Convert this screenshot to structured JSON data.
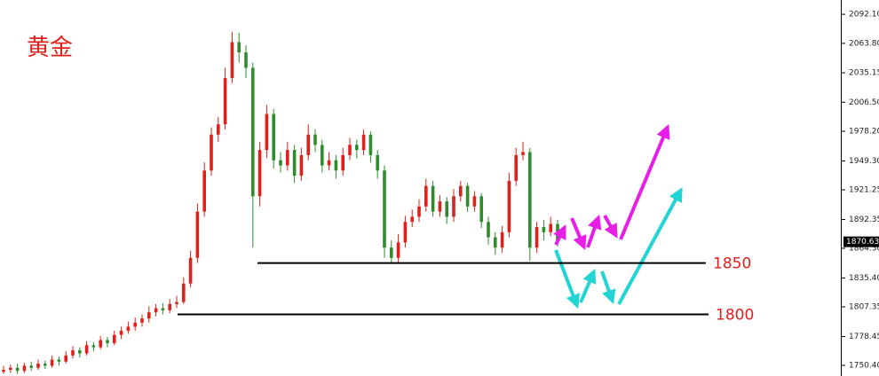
{
  "chart_data": {
    "type": "candlestick",
    "title": "黄金",
    "up_color": "#e0201a",
    "down_color": "#2e8b2e",
    "ylim": [
      1740,
      2106
    ],
    "yticks": [
      {
        "value": 2092.1,
        "label": "2092.10"
      },
      {
        "value": 2063.8,
        "label": "2063.80"
      },
      2035.15,
      {
        "value": 2006.5,
        "label": "2006.50"
      },
      {
        "value": 1978.2,
        "label": "1978.20"
      },
      {
        "value": 1949.3,
        "label": "1949.30"
      },
      1921.25,
      1892.35,
      {
        "value": 1864.3,
        "label": "1864.30"
      },
      {
        "value": 1835.4,
        "label": "1835.40"
      },
      1807.35,
      1778.45,
      {
        "value": 1750.4,
        "label": "1750.40"
      }
    ],
    "levels": [
      1850,
      1800
    ],
    "ohlc": [
      [
        1744,
        1750,
        1742,
        1746
      ],
      [
        1746,
        1751,
        1743,
        1748
      ],
      [
        1748,
        1752,
        1742,
        1745
      ],
      [
        1745,
        1753,
        1743,
        1750
      ],
      [
        1750,
        1754,
        1745,
        1748
      ],
      [
        1748,
        1756,
        1746,
        1752
      ],
      [
        1752,
        1755,
        1747,
        1750
      ],
      [
        1750,
        1760,
        1748,
        1756
      ],
      [
        1756,
        1759,
        1750,
        1754
      ],
      [
        1754,
        1764,
        1752,
        1760
      ],
      [
        1760,
        1769,
        1757,
        1765
      ],
      [
        1765,
        1768,
        1758,
        1762
      ],
      [
        1762,
        1774,
        1760,
        1770
      ],
      [
        1770,
        1773,
        1764,
        1768
      ],
      [
        1768,
        1779,
        1766,
        1775
      ],
      [
        1775,
        1778,
        1768,
        1772
      ],
      [
        1772,
        1784,
        1770,
        1780
      ],
      [
        1780,
        1788,
        1776,
        1784
      ],
      [
        1784,
        1793,
        1781,
        1788
      ],
      [
        1788,
        1797,
        1784,
        1792
      ],
      [
        1792,
        1800,
        1788,
        1796
      ],
      [
        1796,
        1808,
        1792,
        1802
      ],
      [
        1802,
        1810,
        1798,
        1806
      ],
      [
        1806,
        1811,
        1800,
        1804
      ],
      [
        1804,
        1815,
        1801,
        1810
      ],
      [
        1810,
        1818,
        1806,
        1812
      ],
      [
        1812,
        1836,
        1810,
        1830
      ],
      [
        1830,
        1862,
        1826,
        1855
      ],
      [
        1855,
        1908,
        1850,
        1900
      ],
      [
        1900,
        1948,
        1895,
        1940
      ],
      [
        1940,
        1982,
        1935,
        1975
      ],
      [
        1975,
        1992,
        1968,
        1985
      ],
      [
        1985,
        2040,
        1980,
        2030
      ],
      [
        2030,
        2075,
        2025,
        2065
      ],
      [
        2065,
        2074,
        2045,
        2055
      ],
      [
        2055,
        2062,
        2030,
        2040
      ],
      [
        2040,
        2045,
        1865,
        1915
      ],
      [
        1915,
        1968,
        1905,
        1960
      ],
      [
        1960,
        2004,
        1952,
        1995
      ],
      [
        1995,
        2000,
        1942,
        1950
      ],
      [
        1950,
        1958,
        1938,
        1945
      ],
      [
        1945,
        1968,
        1940,
        1960
      ],
      [
        1960,
        1965,
        1928,
        1935
      ],
      [
        1935,
        1962,
        1930,
        1955
      ],
      [
        1955,
        1985,
        1950,
        1975
      ],
      [
        1975,
        1980,
        1958,
        1965
      ],
      [
        1965,
        1970,
        1938,
        1945
      ],
      [
        1945,
        1958,
        1940,
        1950
      ],
      [
        1950,
        1955,
        1932,
        1940
      ],
      [
        1940,
        1962,
        1935,
        1955
      ],
      [
        1955,
        1972,
        1950,
        1965
      ],
      [
        1965,
        1970,
        1952,
        1960
      ],
      [
        1960,
        1980,
        1955,
        1975
      ],
      [
        1975,
        1978,
        1948,
        1955
      ],
      [
        1955,
        1960,
        1932,
        1940
      ],
      [
        1940,
        1945,
        1855,
        1865
      ],
      [
        1865,
        1872,
        1850,
        1855
      ],
      [
        1855,
        1878,
        1850,
        1870
      ],
      [
        1870,
        1896,
        1865,
        1890
      ],
      [
        1890,
        1902,
        1885,
        1895
      ],
      [
        1895,
        1912,
        1890,
        1905
      ],
      [
        1905,
        1932,
        1900,
        1925
      ],
      [
        1925,
        1930,
        1895,
        1900
      ],
      [
        1900,
        1916,
        1895,
        1910
      ],
      [
        1910,
        1914,
        1888,
        1895
      ],
      [
        1895,
        1922,
        1890,
        1915
      ],
      [
        1915,
        1930,
        1910,
        1925
      ],
      [
        1925,
        1928,
        1900,
        1905
      ],
      [
        1905,
        1920,
        1900,
        1915
      ],
      [
        1915,
        1918,
        1884,
        1890
      ],
      [
        1890,
        1895,
        1868,
        1875
      ],
      [
        1875,
        1880,
        1858,
        1865
      ],
      [
        1865,
        1886,
        1860,
        1880
      ],
      [
        1880,
        1938,
        1875,
        1930
      ],
      [
        1930,
        1962,
        1925,
        1955
      ],
      [
        1955,
        1968,
        1950,
        1958
      ],
      [
        1958,
        1962,
        1852,
        1865
      ],
      [
        1865,
        1890,
        1860,
        1885
      ],
      [
        1885,
        1892,
        1872,
        1880
      ],
      [
        1880,
        1895,
        1876,
        1888
      ],
      [
        1888,
        1892,
        1866,
        1870.63
      ]
    ]
  }
}
